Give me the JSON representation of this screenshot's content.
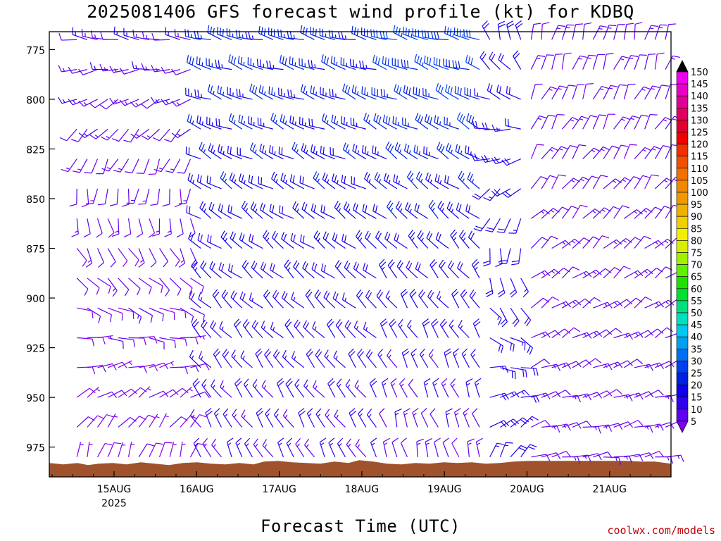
{
  "chart_data": {
    "type": "wind-barb",
    "title": "2025081406 GFS forecast wind profile (kt) for KDBQ",
    "xlabel": "Forecast Time (UTC)",
    "ylabel": "",
    "y_unit_note": "pressure (hPa), inverted axis",
    "ylim": [
      990,
      766
    ],
    "y_ticks": [
      775,
      800,
      825,
      850,
      875,
      900,
      925,
      950,
      975
    ],
    "x_range_hours_since_15AUG00Z": [
      -16.5,
      140
    ],
    "x_ticks": [
      {
        "label": "15AUG",
        "sub": "2025",
        "day": 15
      },
      {
        "label": "16AUG",
        "sub": "",
        "day": 16
      },
      {
        "label": "17AUG",
        "sub": "",
        "day": 17
      },
      {
        "label": "18AUG",
        "sub": "",
        "day": 18
      },
      {
        "label": "19AUG",
        "sub": "",
        "day": 19
      },
      {
        "label": "20AUG",
        "sub": "",
        "day": 20
      },
      {
        "label": "21AUG",
        "sub": "",
        "day": 21
      }
    ],
    "pressure_levels": [
      770,
      785,
      800,
      815,
      830,
      845,
      860,
      875,
      890,
      905,
      920,
      935,
      950,
      965,
      980
    ],
    "wind_speed_kt": {
      "columns_day_start": 14.55,
      "column_step_hours": 3,
      "regimes": [
        {
          "from_day": 14.55,
          "to_day": 15.95,
          "upper_kt": 14,
          "lower_kt": 8,
          "upper_dir": 280,
          "lower_dir": 20
        },
        {
          "from_day": 16.0,
          "to_day": 18.2,
          "upper_kt": 27,
          "lower_kt": 15,
          "upper_dir": 285,
          "lower_dir": 330
        },
        {
          "from_day": 18.2,
          "to_day": 19.55,
          "upper_kt": 32,
          "lower_kt": 12,
          "upper_dir": 285,
          "lower_dir": 345
        },
        {
          "from_day": 19.55,
          "to_day": 20.0,
          "upper_kt": 20,
          "lower_kt": 18,
          "upper_dir": 340,
          "lower_dir": 30
        },
        {
          "from_day": 20.0,
          "to_day": 21.7,
          "upper_kt": 12,
          "lower_kt": 12,
          "upper_dir": 15,
          "lower_dir": 80
        }
      ]
    },
    "terrain_surface_hPa": 983,
    "colorbar": {
      "min": 5,
      "max": 150,
      "step": 5,
      "labels": [
        "150",
        "145",
        "140",
        "135",
        "130",
        "125",
        "120",
        "115",
        "110",
        "105",
        "100",
        "95",
        "90",
        "85",
        "80",
        "75",
        "70",
        "65",
        "60",
        "55",
        "50",
        "45",
        "40",
        "35",
        "30",
        "25",
        "20",
        "15",
        "10",
        "5"
      ],
      "colors": [
        "#f000f0",
        "#e800c8",
        "#e00098",
        "#e00060",
        "#e00030",
        "#f00000",
        "#f03000",
        "#f05000",
        "#f07000",
        "#f08800",
        "#f09800",
        "#f0b000",
        "#f0d000",
        "#f0f000",
        "#d8f000",
        "#a0f000",
        "#60f000",
        "#20e000",
        "#00e030",
        "#00e080",
        "#00e0c0",
        "#00c8f0",
        "#00a0f0",
        "#0070f0",
        "#0040f0",
        "#0020e0",
        "#1000e8",
        "#3000f0",
        "#6000f0",
        "#8000f0"
      ],
      "top_arrow_color": "#000000",
      "bottom_arrow_color": "#8000f0"
    },
    "colors": {
      "terrain": "#a0522d",
      "grid_frame": "#000000"
    }
  },
  "header": {
    "title": "2025081406 GFS forecast wind profile (kt) for KDBQ"
  },
  "axes": {
    "x_title": "Forecast Time (UTC)",
    "y_ticks": [
      "775",
      "800",
      "825",
      "850",
      "875",
      "900",
      "925",
      "950",
      "975"
    ]
  },
  "footer": {
    "credit": "coolwx.com/models"
  }
}
